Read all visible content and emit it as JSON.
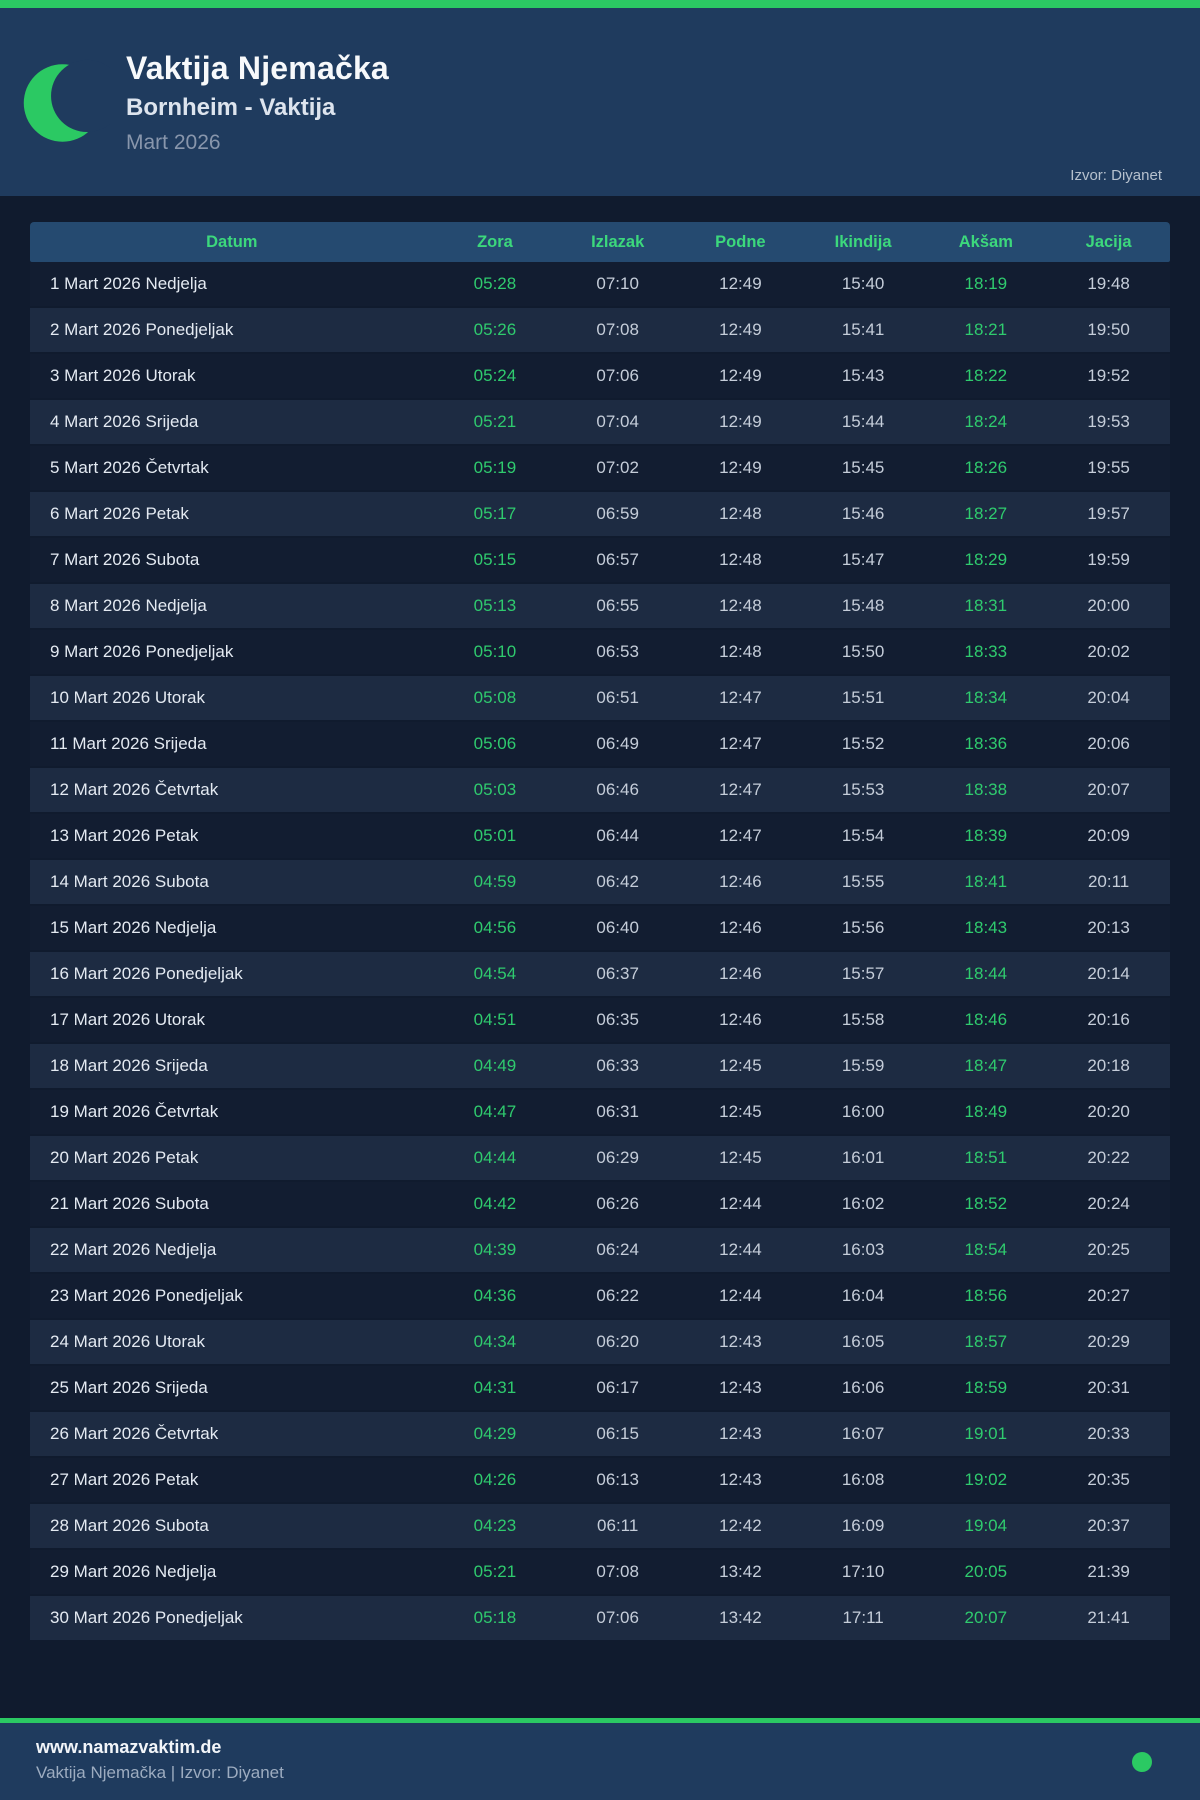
{
  "colors": {
    "accent_green": "#2bc963",
    "time_green": "#2fcb6e",
    "header_bg": "#1f3b5e",
    "page_bg": "#101b2e",
    "table_head_bg": "#254a70",
    "row_alt_bg": "#1d2b42"
  },
  "header": {
    "title": "Vaktija Njemačka",
    "subtitle": "Bornheim - Vaktija",
    "month": "Mart 2026",
    "source": "Izvor: Diyanet"
  },
  "table": {
    "columns": [
      "Datum",
      "Zora",
      "Izlazak",
      "Podne",
      "Ikindija",
      "Akšam",
      "Jacija"
    ],
    "rows": [
      {
        "date": "1 Mart 2026 Nedjelja",
        "zora": "05:28",
        "izlazak": "07:10",
        "podne": "12:49",
        "ikindija": "15:40",
        "aksam": "18:19",
        "jacija": "19:48"
      },
      {
        "date": "2 Mart 2026 Ponedjeljak",
        "zora": "05:26",
        "izlazak": "07:08",
        "podne": "12:49",
        "ikindija": "15:41",
        "aksam": "18:21",
        "jacija": "19:50"
      },
      {
        "date": "3 Mart 2026 Utorak",
        "zora": "05:24",
        "izlazak": "07:06",
        "podne": "12:49",
        "ikindija": "15:43",
        "aksam": "18:22",
        "jacija": "19:52"
      },
      {
        "date": "4 Mart 2026 Srijeda",
        "zora": "05:21",
        "izlazak": "07:04",
        "podne": "12:49",
        "ikindija": "15:44",
        "aksam": "18:24",
        "jacija": "19:53"
      },
      {
        "date": "5 Mart 2026 Četvrtak",
        "zora": "05:19",
        "izlazak": "07:02",
        "podne": "12:49",
        "ikindija": "15:45",
        "aksam": "18:26",
        "jacija": "19:55"
      },
      {
        "date": "6 Mart 2026 Petak",
        "zora": "05:17",
        "izlazak": "06:59",
        "podne": "12:48",
        "ikindija": "15:46",
        "aksam": "18:27",
        "jacija": "19:57"
      },
      {
        "date": "7 Mart 2026 Subota",
        "zora": "05:15",
        "izlazak": "06:57",
        "podne": "12:48",
        "ikindija": "15:47",
        "aksam": "18:29",
        "jacija": "19:59"
      },
      {
        "date": "8 Mart 2026 Nedjelja",
        "zora": "05:13",
        "izlazak": "06:55",
        "podne": "12:48",
        "ikindija": "15:48",
        "aksam": "18:31",
        "jacija": "20:00"
      },
      {
        "date": "9 Mart 2026 Ponedjeljak",
        "zora": "05:10",
        "izlazak": "06:53",
        "podne": "12:48",
        "ikindija": "15:50",
        "aksam": "18:33",
        "jacija": "20:02"
      },
      {
        "date": "10 Mart 2026 Utorak",
        "zora": "05:08",
        "izlazak": "06:51",
        "podne": "12:47",
        "ikindija": "15:51",
        "aksam": "18:34",
        "jacija": "20:04"
      },
      {
        "date": "11 Mart 2026 Srijeda",
        "zora": "05:06",
        "izlazak": "06:49",
        "podne": "12:47",
        "ikindija": "15:52",
        "aksam": "18:36",
        "jacija": "20:06"
      },
      {
        "date": "12 Mart 2026 Četvrtak",
        "zora": "05:03",
        "izlazak": "06:46",
        "podne": "12:47",
        "ikindija": "15:53",
        "aksam": "18:38",
        "jacija": "20:07"
      },
      {
        "date": "13 Mart 2026 Petak",
        "zora": "05:01",
        "izlazak": "06:44",
        "podne": "12:47",
        "ikindija": "15:54",
        "aksam": "18:39",
        "jacija": "20:09"
      },
      {
        "date": "14 Mart 2026 Subota",
        "zora": "04:59",
        "izlazak": "06:42",
        "podne": "12:46",
        "ikindija": "15:55",
        "aksam": "18:41",
        "jacija": "20:11"
      },
      {
        "date": "15 Mart 2026 Nedjelja",
        "zora": "04:56",
        "izlazak": "06:40",
        "podne": "12:46",
        "ikindija": "15:56",
        "aksam": "18:43",
        "jacija": "20:13"
      },
      {
        "date": "16 Mart 2026 Ponedjeljak",
        "zora": "04:54",
        "izlazak": "06:37",
        "podne": "12:46",
        "ikindija": "15:57",
        "aksam": "18:44",
        "jacija": "20:14"
      },
      {
        "date": "17 Mart 2026 Utorak",
        "zora": "04:51",
        "izlazak": "06:35",
        "podne": "12:46",
        "ikindija": "15:58",
        "aksam": "18:46",
        "jacija": "20:16"
      },
      {
        "date": "18 Mart 2026 Srijeda",
        "zora": "04:49",
        "izlazak": "06:33",
        "podne": "12:45",
        "ikindija": "15:59",
        "aksam": "18:47",
        "jacija": "20:18"
      },
      {
        "date": "19 Mart 2026 Četvrtak",
        "zora": "04:47",
        "izlazak": "06:31",
        "podne": "12:45",
        "ikindija": "16:00",
        "aksam": "18:49",
        "jacija": "20:20"
      },
      {
        "date": "20 Mart 2026 Petak",
        "zora": "04:44",
        "izlazak": "06:29",
        "podne": "12:45",
        "ikindija": "16:01",
        "aksam": "18:51",
        "jacija": "20:22"
      },
      {
        "date": "21 Mart 2026 Subota",
        "zora": "04:42",
        "izlazak": "06:26",
        "podne": "12:44",
        "ikindija": "16:02",
        "aksam": "18:52",
        "jacija": "20:24"
      },
      {
        "date": "22 Mart 2026 Nedjelja",
        "zora": "04:39",
        "izlazak": "06:24",
        "podne": "12:44",
        "ikindija": "16:03",
        "aksam": "18:54",
        "jacija": "20:25"
      },
      {
        "date": "23 Mart 2026 Ponedjeljak",
        "zora": "04:36",
        "izlazak": "06:22",
        "podne": "12:44",
        "ikindija": "16:04",
        "aksam": "18:56",
        "jacija": "20:27"
      },
      {
        "date": "24 Mart 2026 Utorak",
        "zora": "04:34",
        "izlazak": "06:20",
        "podne": "12:43",
        "ikindija": "16:05",
        "aksam": "18:57",
        "jacija": "20:29"
      },
      {
        "date": "25 Mart 2026 Srijeda",
        "zora": "04:31",
        "izlazak": "06:17",
        "podne": "12:43",
        "ikindija": "16:06",
        "aksam": "18:59",
        "jacija": "20:31"
      },
      {
        "date": "26 Mart 2026 Četvrtak",
        "zora": "04:29",
        "izlazak": "06:15",
        "podne": "12:43",
        "ikindija": "16:07",
        "aksam": "19:01",
        "jacija": "20:33"
      },
      {
        "date": "27 Mart 2026 Petak",
        "zora": "04:26",
        "izlazak": "06:13",
        "podne": "12:43",
        "ikindija": "16:08",
        "aksam": "19:02",
        "jacija": "20:35"
      },
      {
        "date": "28 Mart 2026 Subota",
        "zora": "04:23",
        "izlazak": "06:11",
        "podne": "12:42",
        "ikindija": "16:09",
        "aksam": "19:04",
        "jacija": "20:37"
      },
      {
        "date": "29 Mart 2026 Nedjelja",
        "zora": "05:21",
        "izlazak": "07:08",
        "podne": "13:42",
        "ikindija": "17:10",
        "aksam": "20:05",
        "jacija": "21:39"
      },
      {
        "date": "30 Mart 2026 Ponedjeljak",
        "zora": "05:18",
        "izlazak": "07:06",
        "podne": "13:42",
        "ikindija": "17:11",
        "aksam": "20:07",
        "jacija": "21:41"
      }
    ]
  },
  "footer": {
    "website": "www.namazvaktim.de",
    "tagline": "Vaktija Njemačka | Izvor: Diyanet"
  }
}
